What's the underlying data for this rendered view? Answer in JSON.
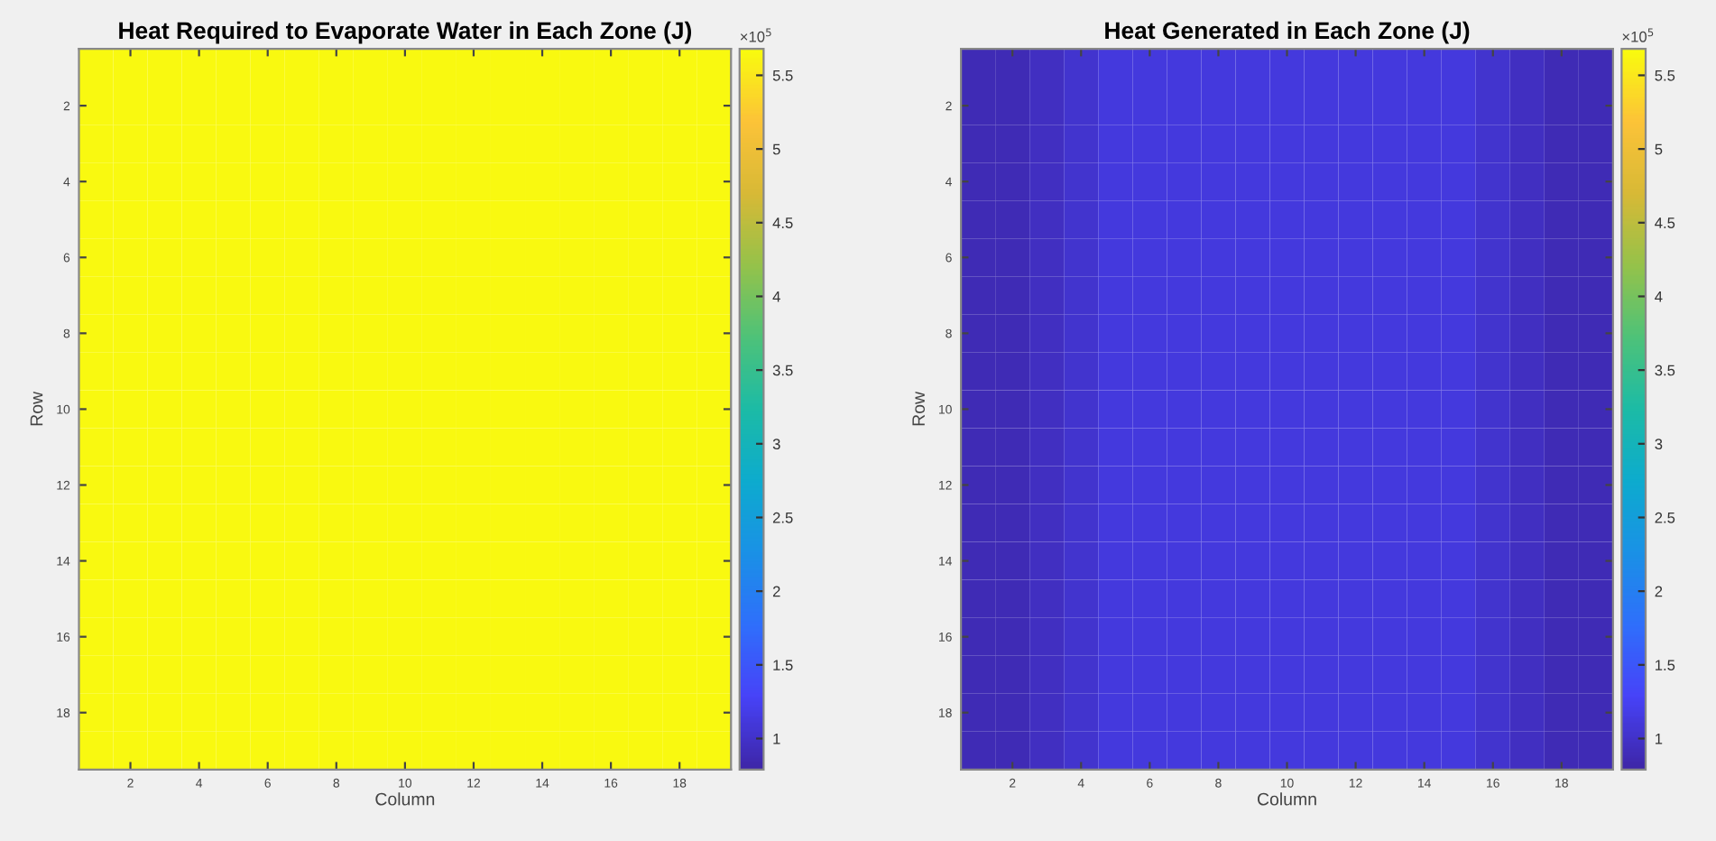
{
  "chart_data": [
    {
      "type": "heatmap",
      "title": "Heat Required to Evaporate Water in Each Zone (J)",
      "xlabel": "Column",
      "ylabel": "Row",
      "categories": [
        null,
        "2",
        null,
        "4",
        null,
        "6",
        null,
        "8",
        null,
        "10",
        null,
        "12",
        null,
        "14",
        null,
        "16",
        null,
        "18",
        null
      ],
      "y_categories": [
        null,
        "2",
        null,
        "4",
        null,
        "6",
        null,
        "8",
        null,
        "10",
        null,
        "12",
        null,
        "14",
        null,
        "16",
        null,
        "18",
        null
      ],
      "cells": [
        [
          5.65,
          5.65,
          5.65,
          5.65,
          5.65,
          5.65,
          5.65,
          5.65,
          5.65,
          5.65,
          5.65,
          5.65,
          5.65,
          5.65,
          5.65,
          5.65,
          5.65,
          5.65,
          5.65
        ],
        [
          5.65,
          5.65,
          5.65,
          5.65,
          5.65,
          5.65,
          5.65,
          5.65,
          5.65,
          5.65,
          5.65,
          5.65,
          5.65,
          5.65,
          5.65,
          5.65,
          5.65,
          5.65,
          5.65
        ],
        [
          5.65,
          5.65,
          5.65,
          5.65,
          5.65,
          5.65,
          5.65,
          5.65,
          5.65,
          5.65,
          5.65,
          5.65,
          5.65,
          5.65,
          5.65,
          5.65,
          5.65,
          5.65,
          5.65
        ],
        [
          5.65,
          5.65,
          5.65,
          5.65,
          5.65,
          5.65,
          5.65,
          5.65,
          5.65,
          5.65,
          5.65,
          5.65,
          5.65,
          5.65,
          5.65,
          5.65,
          5.65,
          5.65,
          5.65
        ],
        [
          5.65,
          5.65,
          5.65,
          5.65,
          5.65,
          5.65,
          5.65,
          5.65,
          5.65,
          5.65,
          5.65,
          5.65,
          5.65,
          5.65,
          5.65,
          5.65,
          5.65,
          5.65,
          5.65
        ],
        [
          5.65,
          5.65,
          5.65,
          5.65,
          5.65,
          5.65,
          5.65,
          5.65,
          5.65,
          5.65,
          5.65,
          5.65,
          5.65,
          5.65,
          5.65,
          5.65,
          5.65,
          5.65,
          5.65
        ],
        [
          5.65,
          5.65,
          5.65,
          5.65,
          5.65,
          5.65,
          5.65,
          5.65,
          5.65,
          5.65,
          5.65,
          5.65,
          5.65,
          5.65,
          5.65,
          5.65,
          5.65,
          5.65,
          5.65
        ],
        [
          5.65,
          5.65,
          5.65,
          5.65,
          5.65,
          5.65,
          5.65,
          5.65,
          5.65,
          5.65,
          5.65,
          5.65,
          5.65,
          5.65,
          5.65,
          5.65,
          5.65,
          5.65,
          5.65
        ],
        [
          5.65,
          5.65,
          5.65,
          5.65,
          5.65,
          5.65,
          5.65,
          5.65,
          5.65,
          5.65,
          5.65,
          5.65,
          5.65,
          5.65,
          5.65,
          5.65,
          5.65,
          5.65,
          5.65
        ],
        [
          5.65,
          5.65,
          5.65,
          5.65,
          5.65,
          5.65,
          5.65,
          5.65,
          5.65,
          5.65,
          5.65,
          5.65,
          5.65,
          5.65,
          5.65,
          5.65,
          5.65,
          5.65,
          5.65
        ],
        [
          5.65,
          5.65,
          5.65,
          5.65,
          5.65,
          5.65,
          5.65,
          5.65,
          5.65,
          5.65,
          5.65,
          5.65,
          5.65,
          5.65,
          5.65,
          5.65,
          5.65,
          5.65,
          5.65
        ],
        [
          5.65,
          5.65,
          5.65,
          5.65,
          5.65,
          5.65,
          5.65,
          5.65,
          5.65,
          5.65,
          5.65,
          5.65,
          5.65,
          5.65,
          5.65,
          5.65,
          5.65,
          5.65,
          5.65
        ],
        [
          5.65,
          5.65,
          5.65,
          5.65,
          5.65,
          5.65,
          5.65,
          5.65,
          5.65,
          5.65,
          5.65,
          5.65,
          5.65,
          5.65,
          5.65,
          5.65,
          5.65,
          5.65,
          5.65
        ],
        [
          5.65,
          5.65,
          5.65,
          5.65,
          5.65,
          5.65,
          5.65,
          5.65,
          5.65,
          5.65,
          5.65,
          5.65,
          5.65,
          5.65,
          5.65,
          5.65,
          5.65,
          5.65,
          5.65
        ],
        [
          5.65,
          5.65,
          5.65,
          5.65,
          5.65,
          5.65,
          5.65,
          5.65,
          5.65,
          5.65,
          5.65,
          5.65,
          5.65,
          5.65,
          5.65,
          5.65,
          5.65,
          5.65,
          5.65
        ],
        [
          5.65,
          5.65,
          5.65,
          5.65,
          5.65,
          5.65,
          5.65,
          5.65,
          5.65,
          5.65,
          5.65,
          5.65,
          5.65,
          5.65,
          5.65,
          5.65,
          5.65,
          5.65,
          5.65
        ],
        [
          5.65,
          5.65,
          5.65,
          5.65,
          5.65,
          5.65,
          5.65,
          5.65,
          5.65,
          5.65,
          5.65,
          5.65,
          5.65,
          5.65,
          5.65,
          5.65,
          5.65,
          5.65,
          5.65
        ],
        [
          5.65,
          5.65,
          5.65,
          5.65,
          5.65,
          5.65,
          5.65,
          5.65,
          5.65,
          5.65,
          5.65,
          5.65,
          5.65,
          5.65,
          5.65,
          5.65,
          5.65,
          5.65,
          5.65
        ],
        [
          5.65,
          5.65,
          5.65,
          5.65,
          5.65,
          5.65,
          5.65,
          5.65,
          5.65,
          5.65,
          5.65,
          5.65,
          5.65,
          5.65,
          5.65,
          5.65,
          5.65,
          5.65,
          5.65
        ]
      ],
      "clim": [
        0.79,
        5.68
      ],
      "cticks": [
        1,
        1.5,
        2,
        2.5,
        3,
        3.5,
        4,
        4.5,
        5,
        5.5
      ],
      "annotations": [
        "×10$^{5}$"
      ]
    },
    {
      "type": "heatmap",
      "title": "Heat Generated in Each Zone (J)",
      "xlabel": "Column",
      "ylabel": "Row",
      "categories": [
        null,
        "2",
        null,
        "4",
        null,
        "6",
        null,
        "8",
        null,
        "10",
        null,
        "12",
        null,
        "14",
        null,
        "16",
        null,
        "18",
        null
      ],
      "y_categories": [
        null,
        "2",
        null,
        "4",
        null,
        "6",
        null,
        "8",
        null,
        "10",
        null,
        "12",
        null,
        "14",
        null,
        "16",
        null,
        "18",
        null
      ],
      "cells": [
        [
          0.88,
          0.88,
          0.95,
          1.02,
          1.12,
          1.12,
          1.12,
          1.12,
          1.12,
          1.12,
          1.12,
          1.12,
          1.12,
          1.12,
          1.12,
          1.02,
          0.95,
          0.88,
          0.88
        ],
        [
          0.88,
          0.88,
          0.95,
          1.02,
          1.12,
          1.12,
          1.12,
          1.12,
          1.12,
          1.12,
          1.12,
          1.12,
          1.12,
          1.12,
          1.12,
          1.02,
          0.95,
          0.88,
          0.88
        ],
        [
          0.88,
          0.88,
          0.95,
          1.02,
          1.12,
          1.12,
          1.12,
          1.12,
          1.12,
          1.12,
          1.12,
          1.12,
          1.12,
          1.12,
          1.12,
          1.02,
          0.95,
          0.88,
          0.88
        ],
        [
          0.88,
          0.88,
          0.95,
          1.02,
          1.12,
          1.12,
          1.12,
          1.12,
          1.12,
          1.12,
          1.12,
          1.12,
          1.12,
          1.12,
          1.12,
          1.02,
          0.95,
          0.88,
          0.88
        ],
        [
          0.88,
          0.88,
          0.95,
          1.02,
          1.12,
          1.12,
          1.12,
          1.12,
          1.12,
          1.12,
          1.12,
          1.12,
          1.12,
          1.12,
          1.12,
          1.02,
          0.95,
          0.88,
          0.88
        ],
        [
          0.88,
          0.88,
          0.95,
          1.02,
          1.12,
          1.12,
          1.12,
          1.12,
          1.12,
          1.12,
          1.12,
          1.12,
          1.12,
          1.12,
          1.12,
          1.02,
          0.95,
          0.88,
          0.88
        ],
        [
          0.88,
          0.88,
          0.95,
          1.02,
          1.12,
          1.12,
          1.12,
          1.12,
          1.12,
          1.12,
          1.12,
          1.12,
          1.12,
          1.12,
          1.12,
          1.02,
          0.95,
          0.88,
          0.88
        ],
        [
          0.88,
          0.88,
          0.95,
          1.02,
          1.12,
          1.12,
          1.12,
          1.12,
          1.12,
          1.12,
          1.12,
          1.12,
          1.12,
          1.12,
          1.12,
          1.02,
          0.95,
          0.88,
          0.88
        ],
        [
          0.88,
          0.88,
          0.95,
          1.02,
          1.12,
          1.12,
          1.12,
          1.12,
          1.12,
          1.12,
          1.12,
          1.12,
          1.12,
          1.12,
          1.12,
          1.02,
          0.95,
          0.88,
          0.88
        ],
        [
          0.88,
          0.88,
          0.95,
          1.02,
          1.12,
          1.12,
          1.12,
          1.12,
          1.12,
          1.12,
          1.12,
          1.12,
          1.12,
          1.12,
          1.12,
          1.02,
          0.95,
          0.88,
          0.88
        ],
        [
          0.88,
          0.88,
          0.95,
          1.02,
          1.12,
          1.12,
          1.12,
          1.12,
          1.12,
          1.12,
          1.12,
          1.12,
          1.12,
          1.12,
          1.12,
          1.02,
          0.95,
          0.88,
          0.88
        ],
        [
          0.88,
          0.88,
          0.95,
          1.02,
          1.12,
          1.12,
          1.12,
          1.12,
          1.12,
          1.12,
          1.12,
          1.12,
          1.12,
          1.12,
          1.12,
          1.02,
          0.95,
          0.88,
          0.88
        ],
        [
          0.88,
          0.88,
          0.95,
          1.02,
          1.12,
          1.12,
          1.12,
          1.12,
          1.12,
          1.12,
          1.12,
          1.12,
          1.12,
          1.12,
          1.12,
          1.02,
          0.95,
          0.88,
          0.88
        ],
        [
          0.88,
          0.88,
          0.95,
          1.02,
          1.12,
          1.12,
          1.12,
          1.12,
          1.12,
          1.12,
          1.12,
          1.12,
          1.12,
          1.12,
          1.12,
          1.02,
          0.95,
          0.88,
          0.88
        ],
        [
          0.88,
          0.88,
          0.95,
          1.02,
          1.12,
          1.12,
          1.12,
          1.12,
          1.12,
          1.12,
          1.12,
          1.12,
          1.12,
          1.12,
          1.12,
          1.02,
          0.95,
          0.88,
          0.88
        ],
        [
          0.88,
          0.88,
          0.95,
          1.02,
          1.12,
          1.12,
          1.12,
          1.12,
          1.12,
          1.12,
          1.12,
          1.12,
          1.12,
          1.12,
          1.12,
          1.02,
          0.95,
          0.88,
          0.88
        ],
        [
          0.88,
          0.88,
          0.95,
          1.02,
          1.12,
          1.12,
          1.12,
          1.12,
          1.12,
          1.12,
          1.12,
          1.12,
          1.12,
          1.12,
          1.12,
          1.02,
          0.95,
          0.88,
          0.88
        ],
        [
          0.88,
          0.88,
          0.95,
          1.02,
          1.12,
          1.12,
          1.12,
          1.12,
          1.12,
          1.12,
          1.12,
          1.12,
          1.12,
          1.12,
          1.12,
          1.02,
          0.95,
          0.88,
          0.88
        ],
        [
          0.88,
          0.88,
          0.95,
          1.02,
          1.12,
          1.12,
          1.12,
          1.12,
          1.12,
          1.12,
          1.12,
          1.12,
          1.12,
          1.12,
          1.12,
          1.02,
          0.95,
          0.88,
          0.88
        ]
      ],
      "clim": [
        0.79,
        5.68
      ],
      "cticks": [
        1,
        1.5,
        2,
        2.5,
        3,
        3.5,
        4,
        4.5,
        5,
        5.5
      ],
      "annotations": [
        "×10$^{5}$"
      ]
    }
  ]
}
